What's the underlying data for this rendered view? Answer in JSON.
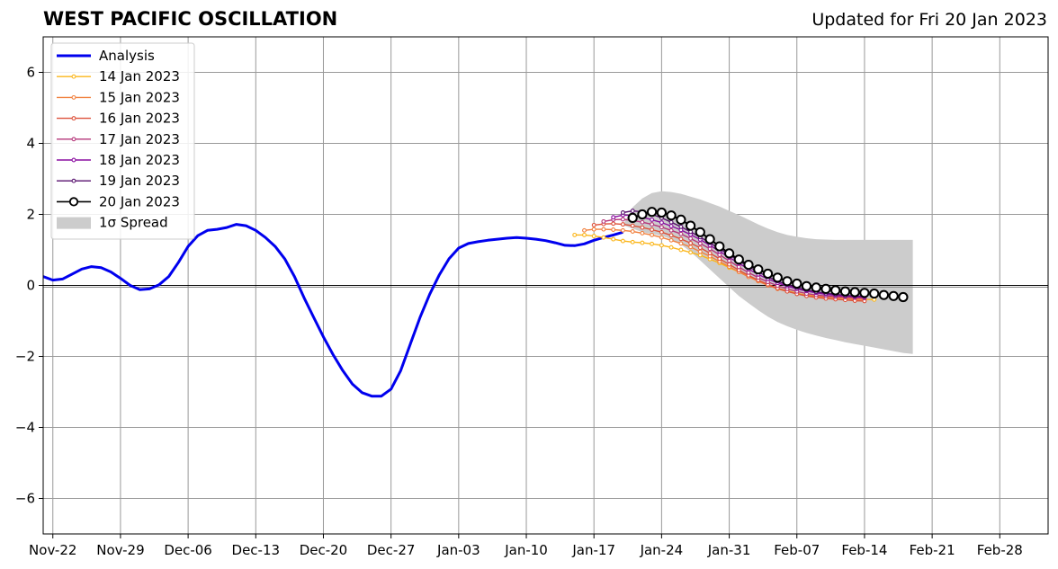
{
  "chart_data": {
    "type": "line",
    "title": "WEST PACIFIC OSCILLATION",
    "subtitle": "Updated for Fri 20 Jan 2023",
    "ylim": [
      -7,
      7
    ],
    "yticks": [
      -6,
      -4,
      -2,
      0,
      2,
      4,
      6
    ],
    "ytick_labels": [
      "−6",
      "−4",
      "−2",
      "0",
      "2",
      "4",
      "6"
    ],
    "xlim": [
      "2022-11-21",
      "2023-03-05"
    ],
    "xticks": [
      "2022-11-22",
      "2022-11-29",
      "2022-12-06",
      "2022-12-13",
      "2022-12-20",
      "2022-12-27",
      "2023-01-03",
      "2023-01-10",
      "2023-01-17",
      "2023-01-24",
      "2023-01-31",
      "2023-02-07",
      "2023-02-14",
      "2023-02-21",
      "2023-02-28"
    ],
    "xtick_labels": [
      "Nov-22",
      "Nov-29",
      "Dec-06",
      "Dec-13",
      "Dec-20",
      "Dec-27",
      "Jan-03",
      "Jan-10",
      "Jan-17",
      "Jan-24",
      "Jan-31",
      "Feb-07",
      "Feb-14",
      "Feb-21",
      "Feb-28"
    ],
    "grid": true,
    "legend_position": "top-left",
    "series": [
      {
        "name": "Analysis",
        "color": "#0000ee",
        "start": "2022-11-21",
        "values": [
          0.25,
          0.15,
          0.18,
          0.32,
          0.46,
          0.53,
          0.5,
          0.38,
          0.2,
          0.0,
          -0.12,
          -0.1,
          0.02,
          0.25,
          0.65,
          1.1,
          1.4,
          1.55,
          1.58,
          1.63,
          1.72,
          1.68,
          1.55,
          1.35,
          1.1,
          0.75,
          0.25,
          -0.35,
          -0.9,
          -1.45,
          -1.95,
          -2.4,
          -2.78,
          -3.02,
          -3.12,
          -3.12,
          -2.92,
          -2.4,
          -1.65,
          -0.9,
          -0.25,
          0.3,
          0.75,
          1.05,
          1.18,
          1.23,
          1.27,
          1.3,
          1.33,
          1.35,
          1.33,
          1.3,
          1.26,
          1.2,
          1.13,
          1.12,
          1.17,
          1.27,
          1.35,
          1.42,
          1.5
        ]
      },
      {
        "name": "14 Jan 2023",
        "color": "#fbb61a",
        "start": "2023-01-15",
        "values": [
          1.42,
          1.42,
          1.39,
          1.35,
          1.3,
          1.25,
          1.22,
          1.2,
          1.17,
          1.13,
          1.07,
          1.0,
          0.93,
          0.85,
          0.74,
          0.63,
          0.5,
          0.38,
          0.25,
          0.12,
          0.02,
          -0.08,
          -0.15,
          -0.22,
          -0.27,
          -0.3,
          -0.32,
          -0.35,
          -0.37,
          -0.38,
          -0.39,
          -0.4
        ]
      },
      {
        "name": "15 Jan 2023",
        "color": "#f1813f",
        "start": "2023-01-16",
        "values": [
          1.55,
          1.58,
          1.58,
          1.57,
          1.55,
          1.52,
          1.47,
          1.42,
          1.35,
          1.27,
          1.18,
          1.08,
          0.95,
          0.82,
          0.67,
          0.53,
          0.38,
          0.24,
          0.12,
          0.0,
          -0.1,
          -0.17,
          -0.23,
          -0.28,
          -0.31,
          -0.33,
          -0.35,
          -0.37,
          -0.39,
          -0.4
        ]
      },
      {
        "name": "16 Jan 2023",
        "color": "#dd513a",
        "start": "2023-01-17",
        "values": [
          1.7,
          1.73,
          1.74,
          1.72,
          1.68,
          1.63,
          1.57,
          1.5,
          1.41,
          1.31,
          1.19,
          1.06,
          0.91,
          0.75,
          0.59,
          0.43,
          0.28,
          0.15,
          0.03,
          -0.08,
          -0.17,
          -0.24,
          -0.3,
          -0.34,
          -0.37,
          -0.39,
          -0.41,
          -0.43,
          -0.44
        ]
      },
      {
        "name": "17 Jan 2023",
        "color": "#b5367a",
        "start": "2023-01-18",
        "values": [
          1.8,
          1.85,
          1.86,
          1.83,
          1.78,
          1.72,
          1.64,
          1.55,
          1.45,
          1.32,
          1.18,
          1.03,
          0.86,
          0.69,
          0.52,
          0.36,
          0.22,
          0.1,
          -0.01,
          -0.1,
          -0.17,
          -0.23,
          -0.27,
          -0.3,
          -0.32,
          -0.33,
          -0.35,
          -0.36
        ]
      },
      {
        "name": "18 Jan 2023",
        "color": "#8a0da0",
        "start": "2023-01-19",
        "values": [
          1.92,
          1.98,
          1.97,
          1.92,
          1.85,
          1.77,
          1.67,
          1.56,
          1.43,
          1.29,
          1.13,
          0.96,
          0.79,
          0.62,
          0.46,
          0.31,
          0.18,
          0.07,
          -0.02,
          -0.1,
          -0.16,
          -0.21,
          -0.25,
          -0.28,
          -0.3,
          -0.32,
          -0.33
        ]
      },
      {
        "name": "19 Jan 2023",
        "color": "#57106e",
        "start": "2023-01-20",
        "values": [
          2.05,
          2.1,
          2.07,
          2.0,
          1.9,
          1.78,
          1.65,
          1.51,
          1.36,
          1.2,
          1.03,
          0.86,
          0.69,
          0.53,
          0.38,
          0.24,
          0.12,
          0.02,
          -0.06,
          -0.13,
          -0.18,
          -0.22,
          -0.25,
          -0.28,
          -0.3,
          -0.31
        ]
      },
      {
        "name": "20 Jan 2023",
        "color": "#000000",
        "start": "2023-01-21",
        "values": [
          1.9,
          2.0,
          2.07,
          2.05,
          1.97,
          1.85,
          1.68,
          1.5,
          1.3,
          1.1,
          0.9,
          0.73,
          0.58,
          0.45,
          0.33,
          0.22,
          0.12,
          0.05,
          -0.02,
          -0.06,
          -0.1,
          -0.14,
          -0.17,
          -0.19,
          -0.21,
          -0.23,
          -0.27,
          -0.3,
          -0.33
        ]
      }
    ],
    "spread": {
      "name": "1σ Spread",
      "color": "#cccccc",
      "start": "2023-01-20",
      "upper": [
        1.7,
        2.2,
        2.45,
        2.6,
        2.65,
        2.63,
        2.58,
        2.5,
        2.42,
        2.32,
        2.22,
        2.1,
        1.98,
        1.85,
        1.72,
        1.6,
        1.5,
        1.42,
        1.37,
        1.33,
        1.3,
        1.29,
        1.28,
        1.28,
        1.28,
        1.28,
        1.28,
        1.28,
        1.28,
        1.28,
        1.28
      ],
      "lower": [
        1.7,
        1.6,
        1.5,
        1.45,
        1.4,
        1.3,
        1.15,
        0.95,
        0.7,
        0.45,
        0.2,
        -0.05,
        -0.3,
        -0.5,
        -0.7,
        -0.88,
        -1.03,
        -1.15,
        -1.25,
        -1.34,
        -1.41,
        -1.48,
        -1.54,
        -1.6,
        -1.65,
        -1.7,
        -1.75,
        -1.8,
        -1.85,
        -1.9,
        -1.93
      ]
    },
    "legend": [
      "Analysis",
      "14 Jan 2023",
      "15 Jan 2023",
      "16 Jan 2023",
      "17 Jan 2023",
      "18 Jan 2023",
      "19 Jan 2023",
      "20 Jan 2023",
      "1σ Spread"
    ]
  }
}
